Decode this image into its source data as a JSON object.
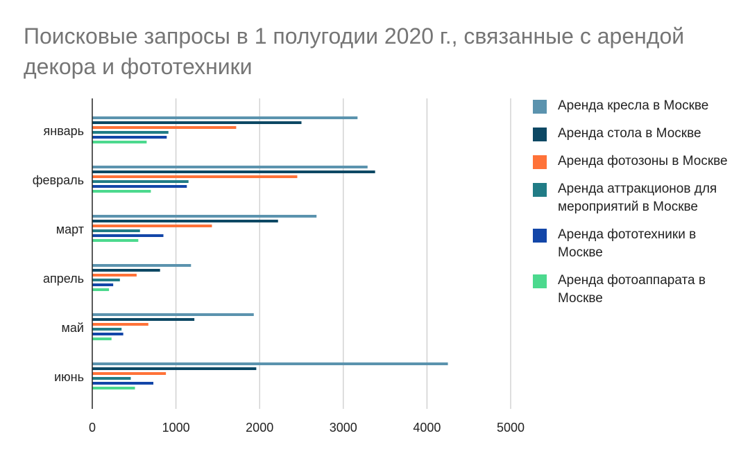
{
  "chart_data": {
    "type": "bar",
    "orientation": "horizontal",
    "title": "Поисковые запросы в 1 полугодии 2020 г., связанные с арендой декора и фототехники",
    "categories": [
      "январь",
      "февраль",
      "март",
      "апрель",
      "май",
      "июнь"
    ],
    "series": [
      {
        "name": "Аренда кресла в Москве",
        "color": "#5b93ae",
        "values": [
          3170,
          3290,
          2680,
          1180,
          1930,
          4250
        ]
      },
      {
        "name": "Аренда стола в Москве",
        "color": "#0d4864",
        "values": [
          2500,
          3380,
          2220,
          810,
          1220,
          1960
        ]
      },
      {
        "name": "Аренда фотозоны в Москве",
        "color": "#ff7238",
        "values": [
          1720,
          2450,
          1430,
          530,
          670,
          880
        ]
      },
      {
        "name": "Аренда аттракционов для мероприятий в Москве",
        "color": "#217c86",
        "values": [
          910,
          1150,
          570,
          330,
          350,
          460
        ]
      },
      {
        "name": "Аренда фототехники в Москве",
        "color": "#1346a8",
        "values": [
          890,
          1130,
          850,
          250,
          370,
          730
        ]
      },
      {
        "name": "Аренда фотоаппарата в Москве",
        "color": "#4cd98e",
        "values": [
          650,
          700,
          550,
          200,
          230,
          510
        ]
      }
    ],
    "xlim": [
      0,
      5000
    ],
    "xticks": [
      0,
      1000,
      2000,
      3000,
      4000,
      5000
    ],
    "grid": true,
    "legend_position": "right"
  }
}
